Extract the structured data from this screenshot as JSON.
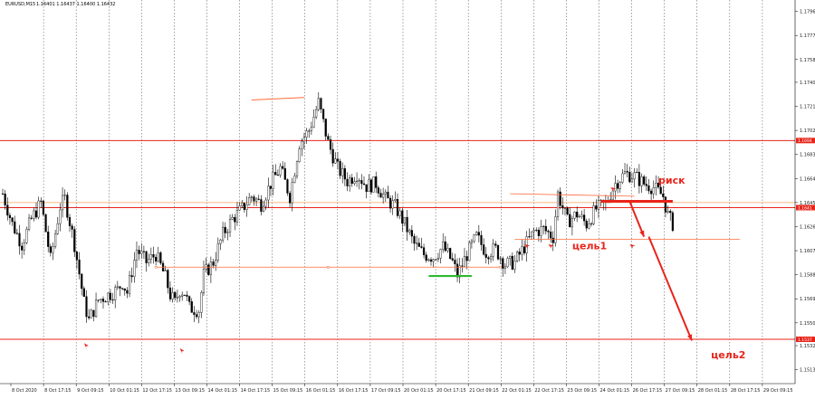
{
  "header": {
    "symbol": "EURUSD,M15",
    "quotes": "1.16401 1.16437 1.16400 1.16432"
  },
  "chart_data": {
    "type": "candlestick",
    "title": "",
    "ylim": [
      1.1502,
      1.1805
    ],
    "y_ticks": [
      "1.1796",
      "1.1777",
      "1.1758",
      "1.1740",
      "1.1721",
      "1.1702",
      "1.1683",
      "1.1664",
      "1.1645",
      "1.1626",
      "1.1607",
      "1.1588",
      "1.1569",
      "1.1550",
      "1.1532",
      "1.1513"
    ],
    "x_ticks": [
      "8 Oct 2020",
      "8 Oct 17:15",
      "9 Oct 09:15",
      "10 Oct 01:15",
      "12 Oct 17:15",
      "13 Oct 09:15",
      "14 Oct 01:15",
      "14 Oct 17:15",
      "15 Oct 09:15",
      "16 Oct 01:15",
      "16 Oct 17:15",
      "17 Oct 09:15",
      "20 Oct 01:15",
      "20 Oct 17:15",
      "21 Oct 09:15",
      "22 Oct 01:15",
      "22 Oct 17:15",
      "23 Oct 09:15",
      "24 Oct 01:15",
      "26 Oct 17:15",
      "27 Oct 09:15",
      "28 Oct 01:15",
      "28 Oct 17:15",
      "29 Oct 09:15"
    ],
    "close_path": [
      [
        0,
        1.1652
      ],
      [
        2,
        1.1628
      ],
      [
        4,
        1.1612
      ],
      [
        6,
        1.1632
      ],
      [
        8,
        1.1645
      ],
      [
        10,
        1.16
      ],
      [
        12,
        1.1642
      ],
      [
        13,
        1.1648
      ],
      [
        15,
        1.1612
      ],
      [
        17,
        1.1566
      ],
      [
        18,
        1.1552
      ],
      [
        19,
        1.156
      ],
      [
        20,
        1.1568
      ],
      [
        22,
        1.1572
      ],
      [
        24,
        1.1576
      ],
      [
        25,
        1.1582
      ],
      [
        26,
        1.1574
      ],
      [
        28,
        1.1608
      ],
      [
        30,
        1.1598
      ],
      [
        32,
        1.1604
      ],
      [
        34,
        1.1586
      ],
      [
        35,
        1.1572
      ],
      [
        36,
        1.1566
      ],
      [
        37,
        1.1576
      ],
      [
        38,
        1.1574
      ],
      [
        39,
        1.1562
      ],
      [
        41,
        1.156
      ],
      [
        42,
        1.1588
      ],
      [
        44,
        1.1598
      ],
      [
        46,
        1.162
      ],
      [
        48,
        1.1632
      ],
      [
        50,
        1.164
      ],
      [
        52,
        1.165
      ],
      [
        54,
        1.1644
      ],
      [
        56,
        1.166
      ],
      [
        58,
        1.1672
      ],
      [
        60,
        1.165
      ],
      [
        62,
        1.1692
      ],
      [
        64,
        1.1702
      ],
      [
        66,
        1.1724
      ],
      [
        67,
        1.1708
      ],
      [
        68,
        1.1692
      ],
      [
        70,
        1.1672
      ],
      [
        72,
        1.1662
      ],
      [
        74,
        1.1668
      ],
      [
        76,
        1.1658
      ],
      [
        78,
        1.166
      ],
      [
        80,
        1.1648
      ],
      [
        82,
        1.1642
      ],
      [
        84,
        1.1628
      ],
      [
        86,
        1.1612
      ],
      [
        88,
        1.1604
      ],
      [
        90,
        1.1602
      ],
      [
        92,
        1.161
      ],
      [
        94,
        1.1598
      ],
      [
        95,
        1.1588
      ],
      [
        97,
        1.1604
      ],
      [
        99,
        1.1618
      ],
      [
        101,
        1.1606
      ],
      [
        103,
        1.1608
      ],
      [
        105,
        1.1596
      ],
      [
        107,
        1.1598
      ],
      [
        109,
        1.161
      ],
      [
        111,
        1.1622
      ],
      [
        113,
        1.1624
      ],
      [
        115,
        1.1618
      ],
      [
        116,
        1.1652
      ],
      [
        118,
        1.163
      ],
      [
        120,
        1.1636
      ],
      [
        122,
        1.1628
      ],
      [
        124,
        1.164
      ],
      [
        126,
        1.1644
      ],
      [
        128,
        1.166
      ],
      [
        130,
        1.1668
      ],
      [
        132,
        1.1666
      ],
      [
        134,
        1.166
      ],
      [
        136,
        1.1657
      ],
      [
        138,
        1.165
      ],
      [
        139,
        1.1635
      ],
      [
        140,
        1.1628
      ]
    ],
    "horizontal_levels": [
      {
        "price": 1.1694,
        "tag": "1.1694",
        "color": "#e8241a"
      },
      {
        "price": 1.1641,
        "tag": "1.1641",
        "color": "#e8241a"
      },
      {
        "price": 1.1537,
        "tag": "1.1537",
        "color": "#e8241a"
      }
    ],
    "orange_levels": [
      {
        "price": 1.1645
      }
    ],
    "annotations": [
      {
        "text": "риск",
        "near_index": 137,
        "price": 1.1662
      },
      {
        "text": "цель1",
        "near_index": 128,
        "price": 1.1612
      },
      {
        "text": "цель2",
        "near_index": 158,
        "price": 1.1528
      }
    ],
    "colors": {
      "level": "#e8241a",
      "support": "#ff6a3d",
      "green": "#2eb82e",
      "candle": "#000000"
    }
  }
}
